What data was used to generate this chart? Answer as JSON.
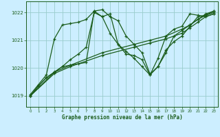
{
  "xlabel": "Graphe pression niveau de la mer (hPa)",
  "bg_color": "#cceeff",
  "grid_color": "#99cccc",
  "line_color": "#1a5c1a",
  "xlim": [
    -0.5,
    23.5
  ],
  "ylim": [
    1018.6,
    1022.4
  ],
  "yticks": [
    1019,
    1020,
    1021,
    1022
  ],
  "xticks": [
    0,
    1,
    2,
    3,
    4,
    5,
    6,
    7,
    8,
    9,
    10,
    11,
    12,
    13,
    14,
    15,
    16,
    17,
    18,
    19,
    20,
    21,
    22,
    23
  ],
  "series": [
    {
      "x": [
        0,
        1,
        2,
        3,
        4,
        5,
        6,
        7,
        8,
        9,
        10,
        11,
        12,
        13,
        14,
        15,
        16,
        17,
        18,
        19,
        20,
        21,
        22,
        23
      ],
      "y": [
        1019.05,
        1019.4,
        1019.75,
        1021.05,
        1021.55,
        1021.6,
        1021.65,
        1021.75,
        1022.05,
        1022.1,
        1021.85,
        1021.7,
        1021.15,
        1020.85,
        1020.55,
        1019.78,
        1020.05,
        1020.65,
        1020.95,
        1021.15,
        1021.5,
        1021.85,
        1021.9,
        1022.05
      ]
    },
    {
      "x": [
        0,
        1,
        2,
        3,
        4,
        5,
        6,
        7,
        8,
        9,
        10,
        11,
        12,
        13,
        14,
        15,
        16,
        17,
        18,
        19,
        20,
        21,
        22,
        23
      ],
      "y": [
        1019.0,
        1019.35,
        1019.65,
        1019.85,
        1020.05,
        1020.1,
        1020.15,
        1020.2,
        1022.05,
        1021.85,
        1021.95,
        1020.85,
        1020.5,
        1020.45,
        1020.3,
        1019.75,
        1020.05,
        1020.55,
        1021.15,
        1021.35,
        1021.55,
        1021.75,
        1021.95,
        1022.05
      ]
    },
    {
      "x": [
        0,
        3,
        5,
        9,
        13,
        15,
        17,
        19,
        20,
        21,
        22,
        23
      ],
      "y": [
        1019.0,
        1019.85,
        1020.1,
        1020.55,
        1020.85,
        1021.0,
        1021.15,
        1021.4,
        1021.55,
        1021.75,
        1021.9,
        1022.0
      ]
    },
    {
      "x": [
        0,
        3,
        5,
        9,
        13,
        15,
        17,
        19,
        20,
        21,
        22,
        23
      ],
      "y": [
        1019.0,
        1019.8,
        1020.05,
        1020.45,
        1020.75,
        1020.9,
        1021.05,
        1021.25,
        1021.45,
        1021.65,
        1021.85,
        1021.95
      ]
    },
    {
      "x": [
        0,
        1,
        2,
        3,
        4,
        5,
        6,
        7,
        8,
        9,
        10,
        11,
        12,
        13,
        14,
        15,
        16,
        17,
        18,
        19,
        20,
        21,
        22,
        23
      ],
      "y": [
        1019.0,
        1019.35,
        1019.65,
        1019.85,
        1020.05,
        1020.3,
        1020.5,
        1020.75,
        1022.0,
        1021.85,
        1021.25,
        1020.85,
        1020.6,
        1020.35,
        1020.05,
        1019.75,
        1020.35,
        1021.15,
        1021.4,
        1021.5,
        1021.95,
        1021.9,
        1021.85,
        1021.95
      ]
    }
  ],
  "marker": "+",
  "markersize": 3.5,
  "linewidth": 0.9
}
